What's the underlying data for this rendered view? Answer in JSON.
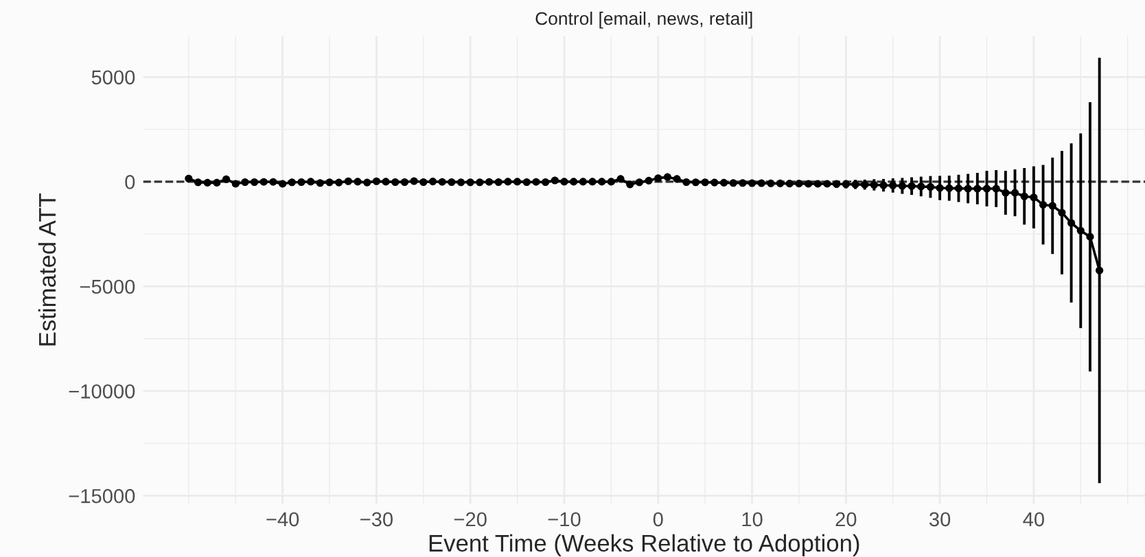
{
  "chart_data": {
    "type": "line",
    "title": "Control [email, news, retail]",
    "xlabel": "Event Time (Weeks Relative to Adoption)",
    "ylabel": "Estimated ATT",
    "x": [
      -50,
      -49,
      -48,
      -47,
      -46,
      -45,
      -44,
      -43,
      -42,
      -41,
      -40,
      -39,
      -38,
      -37,
      -36,
      -35,
      -34,
      -33,
      -32,
      -31,
      -30,
      -29,
      -28,
      -27,
      -26,
      -25,
      -24,
      -23,
      -22,
      -21,
      -20,
      -19,
      -18,
      -17,
      -16,
      -15,
      -14,
      -13,
      -12,
      -11,
      -10,
      -9,
      -8,
      -7,
      -6,
      -5,
      -4,
      -3,
      -2,
      -1,
      0,
      1,
      2,
      3,
      4,
      5,
      6,
      7,
      8,
      9,
      10,
      11,
      12,
      13,
      14,
      15,
      16,
      17,
      18,
      19,
      20,
      21,
      22,
      23,
      24,
      25,
      26,
      27,
      28,
      29,
      30,
      31,
      32,
      33,
      34,
      35,
      36,
      37,
      38,
      39,
      40,
      41,
      42,
      43,
      44,
      45,
      46,
      47
    ],
    "series": [
      {
        "color": "#000000",
        "values": [
          150,
          -30,
          -50,
          -50,
          120,
          -100,
          -20,
          -20,
          -10,
          -10,
          -100,
          -30,
          -20,
          0,
          -60,
          -30,
          -40,
          20,
          0,
          -40,
          20,
          0,
          -20,
          -20,
          30,
          -20,
          10,
          -10,
          -20,
          -30,
          -30,
          -30,
          -10,
          -20,
          0,
          0,
          -20,
          -10,
          -20,
          60,
          0,
          0,
          0,
          0,
          0,
          0,
          130,
          -130,
          -30,
          50,
          170,
          220,
          130,
          -20,
          -30,
          -30,
          -40,
          -50,
          -60,
          -60,
          -70,
          -70,
          -80,
          -80,
          -90,
          -90,
          -100,
          -100,
          -100,
          -110,
          -120,
          -130,
          -140,
          -150,
          -170,
          -180,
          -200,
          -210,
          -230,
          -250,
          -300,
          -310,
          -320,
          -330,
          -330,
          -330,
          -330,
          -530,
          -530,
          -700,
          -750,
          -1100,
          -1150,
          -1480,
          -1970,
          -2340,
          -2630,
          -4240
        ],
        "errors": [
          null,
          null,
          null,
          null,
          null,
          null,
          null,
          null,
          null,
          null,
          null,
          null,
          null,
          null,
          null,
          null,
          null,
          null,
          null,
          null,
          null,
          null,
          null,
          null,
          null,
          null,
          null,
          null,
          null,
          null,
          null,
          null,
          null,
          null,
          null,
          null,
          null,
          null,
          null,
          null,
          null,
          null,
          null,
          null,
          null,
          null,
          null,
          null,
          null,
          null,
          null,
          null,
          null,
          null,
          null,
          null,
          null,
          null,
          null,
          null,
          null,
          null,
          null,
          null,
          null,
          null,
          null,
          null,
          null,
          180,
          200,
          220,
          240,
          270,
          300,
          340,
          380,
          420,
          470,
          520,
          580,
          600,
          650,
          700,
          750,
          850,
          880,
          1050,
          1120,
          1350,
          1480,
          1900,
          2300,
          2950,
          3800,
          4650,
          6430,
          10160
        ]
      }
    ],
    "ref_lines": [
      {
        "axis": "y",
        "value": 0,
        "color": "#333333",
        "line_style": "dashed"
      }
    ],
    "xlim": [
      -54.85,
      51.85
    ],
    "ylim": [
      -15400,
      6950
    ],
    "xticks": [
      {
        "value": -40,
        "label": "−40"
      },
      {
        "value": -30,
        "label": "−30"
      },
      {
        "value": -20,
        "label": "−20"
      },
      {
        "value": -10,
        "label": "−10"
      },
      0,
      10,
      20,
      30,
      40
    ],
    "yticks": [
      {
        "value": -15000,
        "label": "−15000"
      },
      {
        "value": -10000,
        "label": "−10000"
      },
      {
        "value": -5000,
        "label": "−5000"
      },
      0,
      5000
    ],
    "grid": true,
    "marker": "circle",
    "line_style": "solid"
  }
}
